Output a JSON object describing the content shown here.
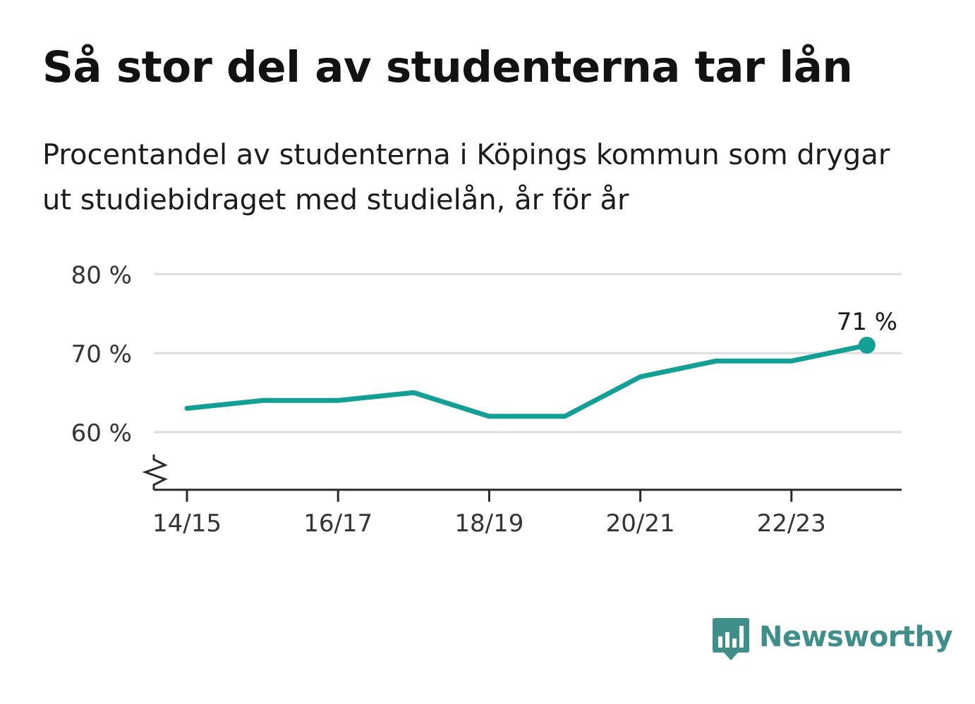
{
  "title": "Så stor del av studenterna tar lån",
  "subtitle": "Procentandel av studenterna i Köpings kommun som drygar ut studiebidraget med studielån, år för år",
  "brand": {
    "name": "Newsworthy",
    "color": "#3e8f89"
  },
  "colors": {
    "series": "#12a096",
    "grid": "#dddddd",
    "axis": "#2a2a2a",
    "tick_label": "#333333"
  },
  "chart_data": {
    "type": "line",
    "x": [
      "14/15",
      "15/16",
      "16/17",
      "17/18",
      "18/19",
      "19/20",
      "20/21",
      "21/22",
      "22/23",
      "23/24"
    ],
    "series": [
      {
        "values": [
          63,
          64,
          64,
          65,
          62,
          62,
          67,
          69,
          69,
          71
        ]
      }
    ],
    "x_tick_labels": [
      "14/15",
      "16/17",
      "18/19",
      "20/21",
      "22/23"
    ],
    "y_ticks": [
      60,
      70,
      80
    ],
    "y_tick_labels": [
      "60 %",
      "70 %",
      "80 %"
    ],
    "ylim": [
      52.7,
      80
    ],
    "y_axis_break": true,
    "last_point_label": "71 %",
    "grid": true,
    "legend": "none"
  }
}
